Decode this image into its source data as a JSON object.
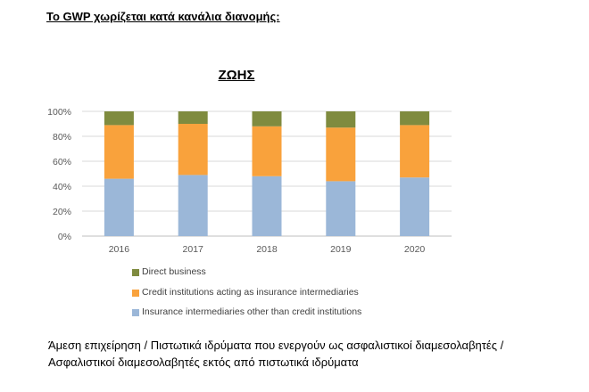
{
  "heading": "Το GWP χωρίζεται κατά κανάλια διανομής:",
  "chart_data": {
    "type": "bar",
    "stacked": true,
    "percent": true,
    "title": "ΖΩΗΣ",
    "categories": [
      "2016",
      "2017",
      "2018",
      "2019",
      "2020"
    ],
    "series": [
      {
        "name": "Insurance intermediaries other than credit institutions",
        "values": [
          46,
          49,
          48,
          44,
          47
        ],
        "color": "#9bb7d8"
      },
      {
        "name": "Credit institutions acting as insurance intermediaries",
        "values": [
          43,
          41,
          40,
          43,
          42
        ],
        "color": "#f9a23c"
      },
      {
        "name": "Direct business",
        "values": [
          11,
          10,
          12,
          13,
          11
        ],
        "color": "#7f8b3f"
      }
    ],
    "ylim": [
      0,
      100
    ],
    "yticks": [
      "0%",
      "20%",
      "40%",
      "60%",
      "80%",
      "100%"
    ],
    "grid": true,
    "legend_position": "bottom"
  },
  "legend_order": [
    2,
    1,
    0
  ],
  "caption": {
    "line1": "Άμεση επιχείρηση / Πιστωτικά ιδρύματα που ενεργούν ως ασφαλιστικοί διαμεσολαβητές /",
    "line2": "Ασφαλιστικοί διαμεσολαβητές εκτός από πιστωτικά ιδρύματα"
  }
}
